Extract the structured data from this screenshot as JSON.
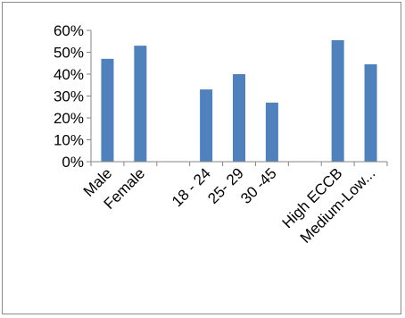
{
  "chart_data": {
    "type": "bar",
    "categories": [
      "Male",
      "Female",
      "",
      "18 - 24",
      "25- 29",
      "30 -45",
      "",
      "High ECCB",
      "Medium-Low..."
    ],
    "values": [
      0.47,
      0.53,
      null,
      0.33,
      0.4,
      0.27,
      null,
      0.555,
      0.445
    ],
    "ylim": [
      0,
      0.6
    ],
    "yticks": [
      0,
      0.1,
      0.2,
      0.3,
      0.4,
      0.5,
      0.6
    ],
    "ytick_labels": [
      "0%",
      "10%",
      "20%",
      "30%",
      "40%",
      "50%",
      "60%"
    ],
    "title": "",
    "xlabel": "",
    "ylabel": "",
    "grid": false,
    "legend": "none",
    "bar_color": "#4f81bd",
    "axis_color": "#868686"
  }
}
